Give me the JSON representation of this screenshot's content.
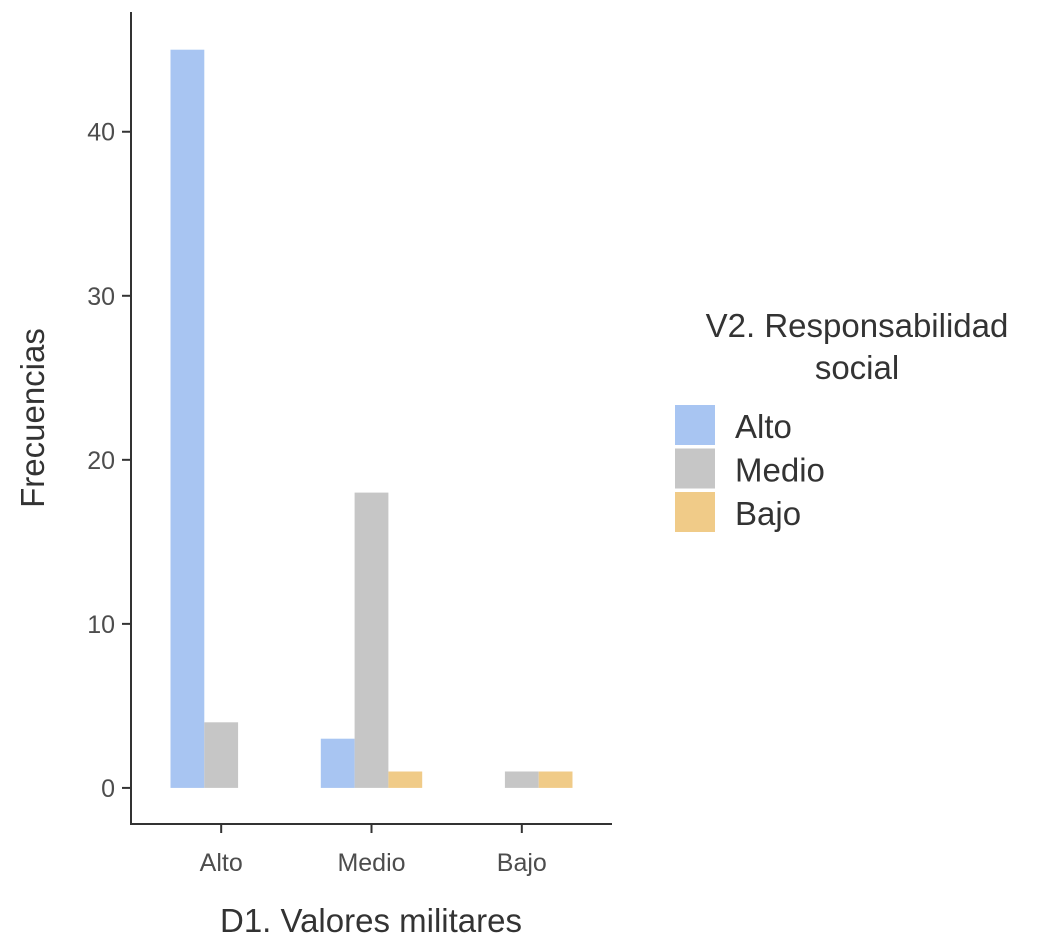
{
  "chart_data": {
    "type": "bar",
    "xlabel": "D1. Valores militares",
    "ylabel": "Frecuencias",
    "categories": [
      "Alto",
      "Medio",
      "Bajo"
    ],
    "yticks": [
      0,
      10,
      20,
      30,
      40
    ],
    "ylim": [
      -2.2,
      47.3
    ],
    "grid": false,
    "legend": {
      "title_lines": [
        "V2. Responsabilidad",
        "social"
      ],
      "placement": "right"
    },
    "series": [
      {
        "name": "Alto",
        "color": "#a8c5f2",
        "values": [
          45,
          3,
          0
        ]
      },
      {
        "name": "Medio",
        "color": "#c6c6c6",
        "values": [
          4,
          18,
          1
        ]
      },
      {
        "name": "Bajo",
        "color": "#f0cb88",
        "values": [
          0,
          1,
          1
        ]
      }
    ]
  }
}
